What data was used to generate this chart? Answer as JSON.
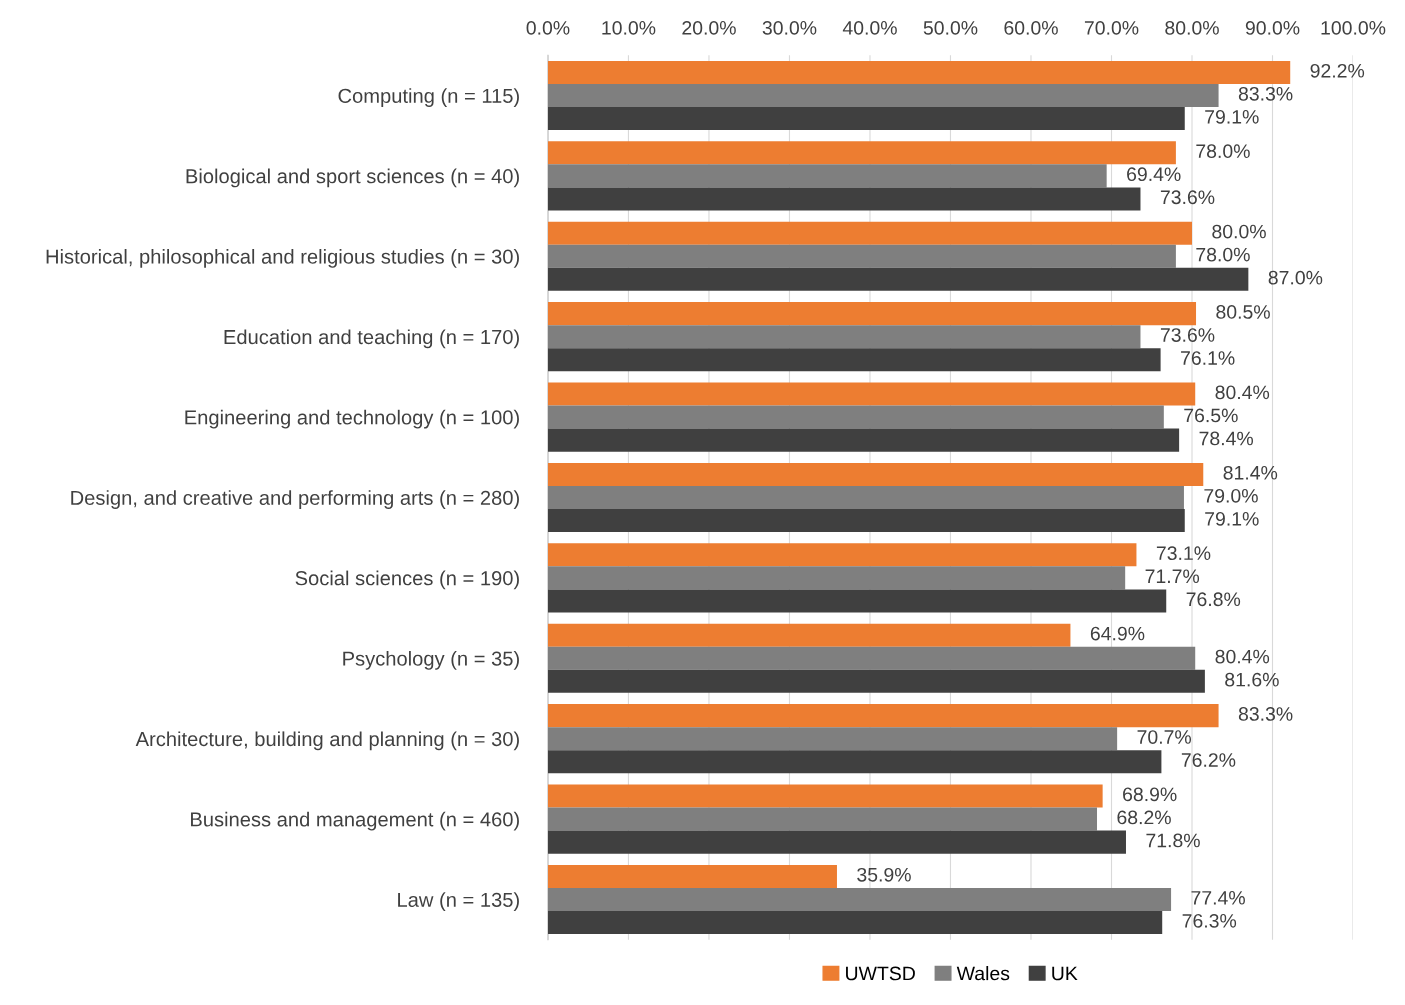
{
  "chart_data": {
    "type": "bar",
    "orientation": "horizontal",
    "categories": [
      "Computing (n = 115)",
      "Biological and sport sciences (n = 40)",
      "Historical, philosophical and religious studies (n = 30)",
      "Education and teaching (n = 170)",
      "Engineering and technology (n = 100)",
      "Design, and creative and performing arts (n = 280)",
      "Social sciences (n = 190)",
      "Psychology (n = 35)",
      "Architecture, building and planning (n = 30)",
      "Business and management (n = 460)",
      "Law (n = 135)"
    ],
    "series": [
      {
        "name": "UWTSD",
        "color": "#ed7d31",
        "values": [
          92.2,
          78.0,
          80.0,
          80.5,
          80.4,
          81.4,
          73.1,
          64.9,
          83.3,
          68.9,
          35.9
        ],
        "value_labels": [
          "92.2%",
          "78.0%",
          "80.0%",
          "80.5%",
          "80.4%",
          "81.4%",
          "73.1%",
          "64.9%",
          "83.3%",
          "68.9%",
          "35.9%"
        ]
      },
      {
        "name": "Wales",
        "color": "#7f7f7f",
        "values": [
          83.3,
          69.4,
          78.0,
          73.6,
          76.5,
          79.0,
          71.7,
          80.4,
          70.7,
          68.2,
          77.4
        ],
        "value_labels": [
          "83.3%",
          "69.4%",
          "78.0%",
          "73.6%",
          "76.5%",
          "79.0%",
          "71.7%",
          "80.4%",
          "70.7%",
          "68.2%",
          "77.4%"
        ]
      },
      {
        "name": "UK",
        "color": "#404040",
        "values": [
          79.1,
          73.6,
          87.0,
          76.1,
          78.4,
          79.1,
          76.8,
          81.6,
          76.2,
          71.8,
          76.3
        ],
        "value_labels": [
          "79.1%",
          "73.6%",
          "87.0%",
          "76.1%",
          "78.4%",
          "79.1%",
          "76.8%",
          "81.6%",
          "76.2%",
          "71.8%",
          "76.3%"
        ]
      }
    ],
    "xlim": [
      0,
      100
    ],
    "xticks": [
      {
        "value": 0,
        "label": "0.0%"
      },
      {
        "value": 10,
        "label": "10.0%"
      },
      {
        "value": 20,
        "label": "20.0%"
      },
      {
        "value": 30,
        "label": "30.0%"
      },
      {
        "value": 40,
        "label": "40.0%"
      },
      {
        "value": 50,
        "label": "50.0%"
      },
      {
        "value": 60,
        "label": "60.0%"
      },
      {
        "value": 70,
        "label": "70.0%"
      },
      {
        "value": 80,
        "label": "80.0%"
      },
      {
        "value": 90,
        "label": "90.0%"
      },
      {
        "value": 100,
        "label": "100.0%"
      }
    ],
    "grid": "x",
    "legend": "bottom"
  }
}
